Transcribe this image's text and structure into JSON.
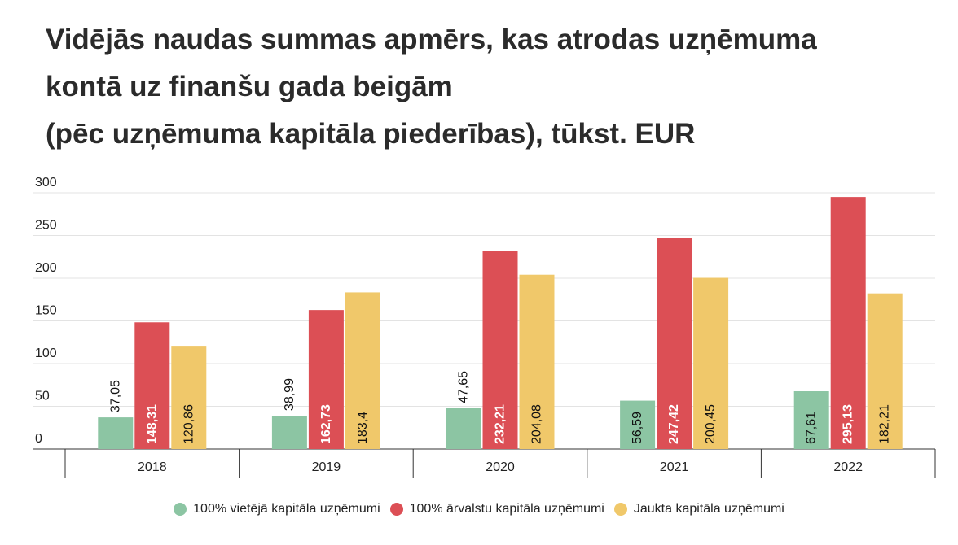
{
  "title_lines": [
    "Vidējās naudas summas apmērs, kas atrodas uzņēmuma",
    "kontā uz finanšu gada beigām",
    "(pēc uzņēmuma kapitāla piederības), tūkst. EUR"
  ],
  "legend": [
    {
      "label": "100% vietējā kapitāla uzņēmumi",
      "color": "#8cc5a3"
    },
    {
      "label": "100% ārvalstu kapitāla uzņēmumi",
      "color": "#dc4f55"
    },
    {
      "label": "Jaukta kapitāla uzņēmumi",
      "color": "#f0c86a"
    }
  ],
  "chart_data": {
    "type": "bar",
    "title": "Vidējās naudas summas apmērs, kas atrodas uzņēmuma kontā uz finanšu gada beigām (pēc uzņēmuma kapitāla piederības), tūkst. EUR",
    "categories": [
      "2018",
      "2019",
      "2020",
      "2021",
      "2022"
    ],
    "series": [
      {
        "name": "100% vietējā kapitāla uzņēmumi",
        "color": "#8cc5a3",
        "values": [
          37.05,
          38.99,
          47.65,
          56.59,
          67.61
        ],
        "labels": [
          "37,05",
          "38,99",
          "47,65",
          "56,59",
          "67,61"
        ]
      },
      {
        "name": "100% ārvalstu kapitāla uzņēmumi",
        "color": "#dc4f55",
        "values": [
          148.31,
          162.73,
          232.21,
          247.42,
          295.13
        ],
        "labels": [
          "148,31",
          "162,73",
          "232,21",
          "247,42",
          "295,13"
        ]
      },
      {
        "name": "Jaukta kapitāla uzņēmumi",
        "color": "#f0c86a",
        "values": [
          120.86,
          183.4,
          204.08,
          200.45,
          182.21
        ],
        "labels": [
          "120,86",
          "183,4",
          "204,08",
          "200,45",
          "182,21"
        ]
      }
    ],
    "yticks": [
      "0",
      "50",
      "100",
      "150",
      "200",
      "250",
      "300"
    ],
    "ylim": [
      0,
      300
    ],
    "xlabel": "",
    "ylabel": "",
    "grid": true,
    "legend_position": "bottom"
  }
}
